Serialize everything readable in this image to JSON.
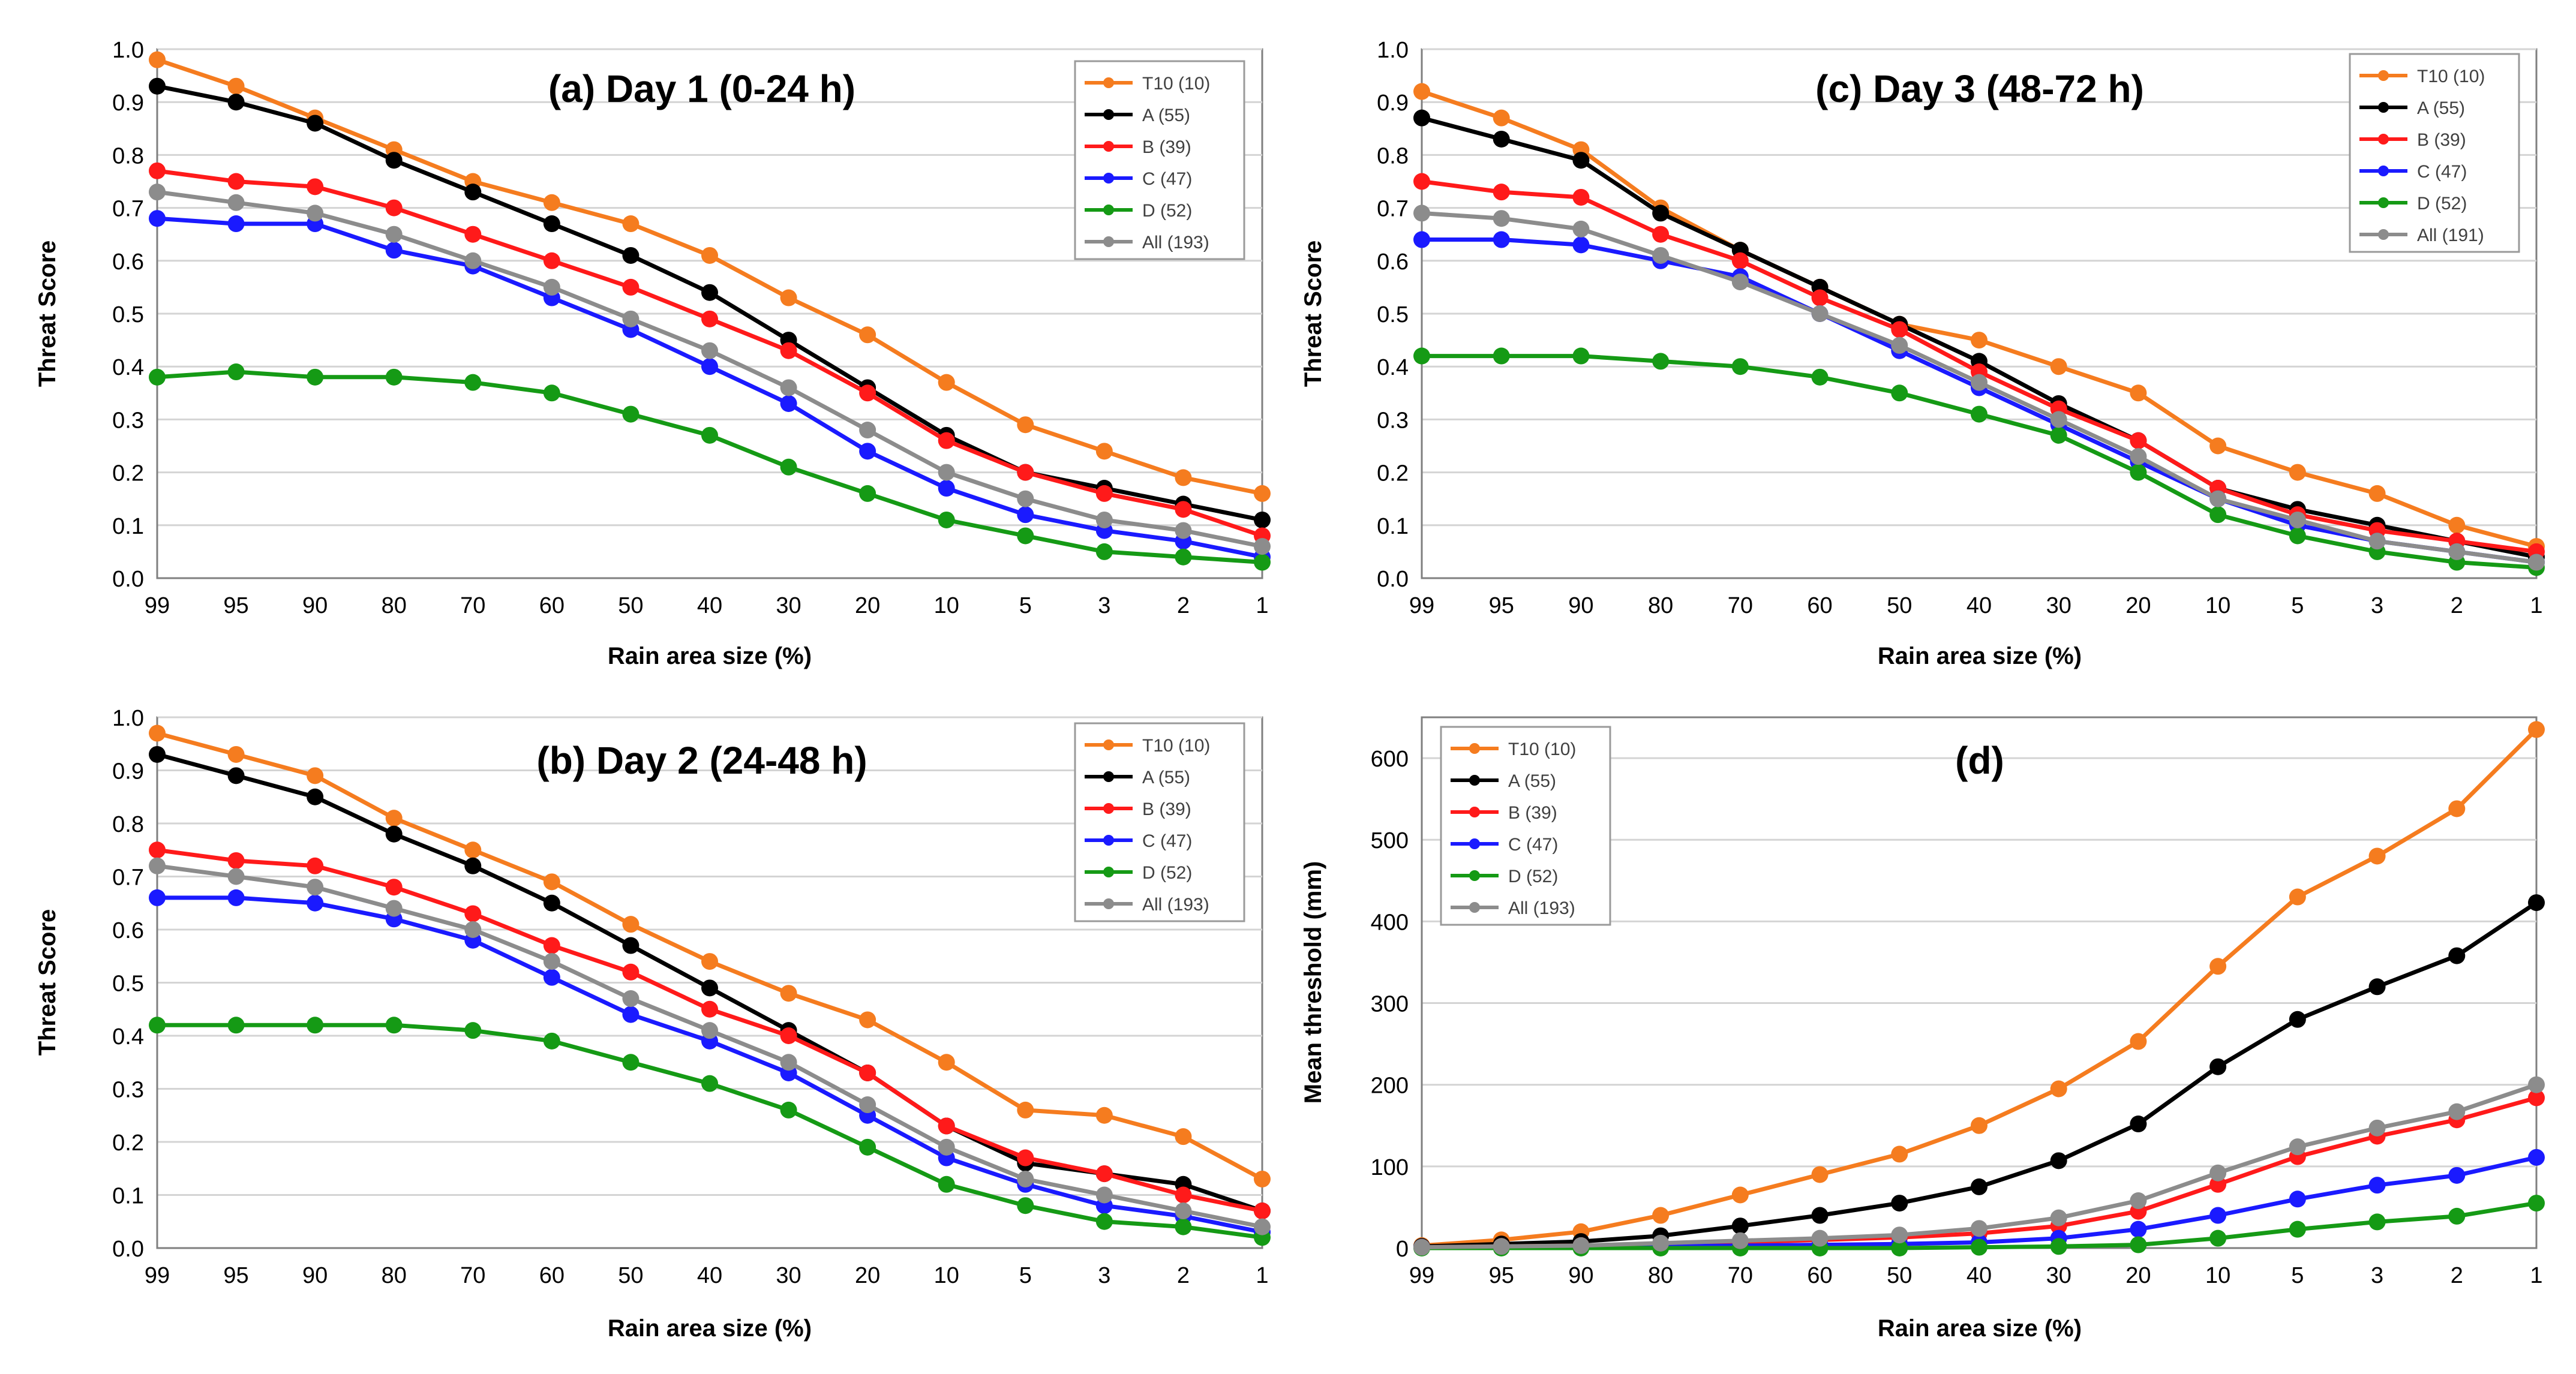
{
  "chart_data": [
    {
      "id": "a",
      "type": "line",
      "title": "(a) Day 1 (0-24 h)",
      "xlabel": "Rain area size (%)",
      "ylabel": "Threat Score",
      "categories": [
        "99",
        "95",
        "90",
        "80",
        "70",
        "60",
        "50",
        "40",
        "30",
        "20",
        "10",
        "5",
        "3",
        "2",
        "1"
      ],
      "ylim": [
        0,
        1.0
      ],
      "yticks": [
        "0.0",
        "0.1",
        "0.2",
        "0.3",
        "0.4",
        "0.5",
        "0.6",
        "0.7",
        "0.8",
        "0.9",
        "1.0"
      ],
      "grid": true,
      "legend_position": "top-right",
      "series": [
        {
          "name": "T10 (10)",
          "color": "#f57c1f",
          "values": [
            0.98,
            0.93,
            0.87,
            0.81,
            0.75,
            0.71,
            0.67,
            0.61,
            0.53,
            0.46,
            0.37,
            0.29,
            0.24,
            0.19,
            0.16
          ]
        },
        {
          "name": "A (55)",
          "color": "#000000",
          "values": [
            0.93,
            0.9,
            0.86,
            0.79,
            0.73,
            0.67,
            0.61,
            0.54,
            0.45,
            0.36,
            0.27,
            0.2,
            0.17,
            0.14,
            0.11
          ]
        },
        {
          "name": "B (39)",
          "color": "#ff1a1a",
          "values": [
            0.77,
            0.75,
            0.74,
            0.7,
            0.65,
            0.6,
            0.55,
            0.49,
            0.43,
            0.35,
            0.26,
            0.2,
            0.16,
            0.13,
            0.08
          ]
        },
        {
          "name": "C (47)",
          "color": "#1a1aff",
          "values": [
            0.68,
            0.67,
            0.67,
            0.62,
            0.59,
            0.53,
            0.47,
            0.4,
            0.33,
            0.24,
            0.17,
            0.12,
            0.09,
            0.07,
            0.04
          ]
        },
        {
          "name": "D (52)",
          "color": "#159a15",
          "values": [
            0.38,
            0.39,
            0.38,
            0.38,
            0.37,
            0.35,
            0.31,
            0.27,
            0.21,
            0.16,
            0.11,
            0.08,
            0.05,
            0.04,
            0.03
          ]
        },
        {
          "name": "All (193)",
          "color": "#8c8c8c",
          "values": [
            0.73,
            0.71,
            0.69,
            0.65,
            0.6,
            0.55,
            0.49,
            0.43,
            0.36,
            0.28,
            0.2,
            0.15,
            0.11,
            0.09,
            0.06
          ]
        }
      ]
    },
    {
      "id": "c",
      "type": "line",
      "title": "(c) Day 3 (48-72 h)",
      "xlabel": "Rain area size (%)",
      "ylabel": "Threat Score",
      "categories": [
        "99",
        "95",
        "90",
        "80",
        "70",
        "60",
        "50",
        "40",
        "30",
        "20",
        "10",
        "5",
        "3",
        "2",
        "1"
      ],
      "ylim": [
        0,
        1.0
      ],
      "yticks": [
        "0.0",
        "0.1",
        "0.2",
        "0.3",
        "0.4",
        "0.5",
        "0.6",
        "0.7",
        "0.8",
        "0.9",
        "1.0"
      ],
      "grid": true,
      "legend_position": "top-right",
      "series": [
        {
          "name": "T10 (10)",
          "color": "#f57c1f",
          "values": [
            0.92,
            0.87,
            0.81,
            0.7,
            0.62,
            0.55,
            0.48,
            0.45,
            0.4,
            0.35,
            0.25,
            0.2,
            0.16,
            0.1,
            0.06
          ]
        },
        {
          "name": "A (55)",
          "color": "#000000",
          "values": [
            0.87,
            0.83,
            0.79,
            0.69,
            0.62,
            0.55,
            0.48,
            0.41,
            0.33,
            0.26,
            0.17,
            0.13,
            0.1,
            0.07,
            0.04
          ]
        },
        {
          "name": "B (39)",
          "color": "#ff1a1a",
          "values": [
            0.75,
            0.73,
            0.72,
            0.65,
            0.6,
            0.53,
            0.47,
            0.39,
            0.32,
            0.26,
            0.17,
            0.12,
            0.09,
            0.07,
            0.05
          ]
        },
        {
          "name": "C (47)",
          "color": "#1a1aff",
          "values": [
            0.64,
            0.64,
            0.63,
            0.6,
            0.57,
            0.5,
            0.43,
            0.36,
            0.29,
            0.22,
            0.15,
            0.1,
            0.07,
            0.05,
            0.03
          ]
        },
        {
          "name": "D (52)",
          "color": "#159a15",
          "values": [
            0.42,
            0.42,
            0.42,
            0.41,
            0.4,
            0.38,
            0.35,
            0.31,
            0.27,
            0.2,
            0.12,
            0.08,
            0.05,
            0.03,
            0.02
          ]
        },
        {
          "name": "All (191)",
          "color": "#8c8c8c",
          "values": [
            0.69,
            0.68,
            0.66,
            0.61,
            0.56,
            0.5,
            0.44,
            0.37,
            0.3,
            0.23,
            0.15,
            0.11,
            0.07,
            0.05,
            0.03
          ]
        }
      ]
    },
    {
      "id": "b",
      "type": "line",
      "title": "(b) Day 2 (24-48 h)",
      "xlabel": "Rain area size (%)",
      "ylabel": "Threat Score",
      "categories": [
        "99",
        "95",
        "90",
        "80",
        "70",
        "60",
        "50",
        "40",
        "30",
        "20",
        "10",
        "5",
        "3",
        "2",
        "1"
      ],
      "ylim": [
        0,
        1.0
      ],
      "yticks": [
        "0.0",
        "0.1",
        "0.2",
        "0.3",
        "0.4",
        "0.5",
        "0.6",
        "0.7",
        "0.8",
        "0.9",
        "1.0"
      ],
      "grid": true,
      "legend_position": "top-right",
      "series": [
        {
          "name": "T10 (10)",
          "color": "#f57c1f",
          "values": [
            0.97,
            0.93,
            0.89,
            0.81,
            0.75,
            0.69,
            0.61,
            0.54,
            0.48,
            0.43,
            0.35,
            0.26,
            0.25,
            0.21,
            0.13
          ]
        },
        {
          "name": "A (55)",
          "color": "#000000",
          "values": [
            0.93,
            0.89,
            0.85,
            0.78,
            0.72,
            0.65,
            0.57,
            0.49,
            0.41,
            0.33,
            0.23,
            0.16,
            0.14,
            0.12,
            0.07
          ]
        },
        {
          "name": "B (39)",
          "color": "#ff1a1a",
          "values": [
            0.75,
            0.73,
            0.72,
            0.68,
            0.63,
            0.57,
            0.52,
            0.45,
            0.4,
            0.33,
            0.23,
            0.17,
            0.14,
            0.1,
            0.07
          ]
        },
        {
          "name": "C (47)",
          "color": "#1a1aff",
          "values": [
            0.66,
            0.66,
            0.65,
            0.62,
            0.58,
            0.51,
            0.44,
            0.39,
            0.33,
            0.25,
            0.17,
            0.12,
            0.08,
            0.06,
            0.03
          ]
        },
        {
          "name": "D (52)",
          "color": "#159a15",
          "values": [
            0.42,
            0.42,
            0.42,
            0.42,
            0.41,
            0.39,
            0.35,
            0.31,
            0.26,
            0.19,
            0.12,
            0.08,
            0.05,
            0.04,
            0.02
          ]
        },
        {
          "name": "All (193)",
          "color": "#8c8c8c",
          "values": [
            0.72,
            0.7,
            0.68,
            0.64,
            0.6,
            0.54,
            0.47,
            0.41,
            0.35,
            0.27,
            0.19,
            0.13,
            0.1,
            0.07,
            0.04
          ]
        }
      ]
    },
    {
      "id": "d",
      "type": "line",
      "title": "(d)",
      "xlabel": "Rain area size (%)",
      "ylabel": "Mean threshold (mm)",
      "categories": [
        "99",
        "95",
        "90",
        "80",
        "70",
        "60",
        "50",
        "40",
        "30",
        "20",
        "10",
        "5",
        "3",
        "2",
        "1"
      ],
      "ylim": [
        0,
        650
      ],
      "yticks": [
        "0",
        "100",
        "200",
        "300",
        "400",
        "500",
        "600"
      ],
      "ytick_values": [
        0,
        100,
        200,
        300,
        400,
        500,
        600
      ],
      "grid": true,
      "legend_position": "top-left",
      "series": [
        {
          "name": "T10 (10)",
          "color": "#f57c1f",
          "values": [
            3,
            10,
            20,
            40,
            65,
            90,
            115,
            150,
            195,
            253,
            345,
            430,
            480,
            538,
            635
          ]
        },
        {
          "name": "A (55)",
          "color": "#000000",
          "values": [
            2,
            5,
            8,
            15,
            27,
            40,
            55,
            75,
            107,
            152,
            222,
            280,
            320,
            358,
            423
          ]
        },
        {
          "name": "B (39)",
          "color": "#ff1a1a",
          "values": [
            1,
            2,
            3,
            5,
            7,
            10,
            13,
            18,
            27,
            45,
            78,
            112,
            137,
            157,
            184
          ]
        },
        {
          "name": "C (47)",
          "color": "#1a1aff",
          "values": [
            1,
            1,
            2,
            2,
            3,
            4,
            5,
            7,
            12,
            23,
            40,
            60,
            77,
            89,
            111
          ]
        },
        {
          "name": "D (52)",
          "color": "#159a15",
          "values": [
            0,
            0,
            0,
            0,
            0,
            0,
            0,
            1,
            2,
            4,
            12,
            23,
            32,
            39,
            55
          ]
        },
        {
          "name": "All (193)",
          "color": "#8c8c8c",
          "values": [
            1,
            2,
            3,
            6,
            9,
            12,
            16,
            24,
            37,
            58,
            92,
            124,
            147,
            167,
            200
          ]
        }
      ]
    }
  ]
}
